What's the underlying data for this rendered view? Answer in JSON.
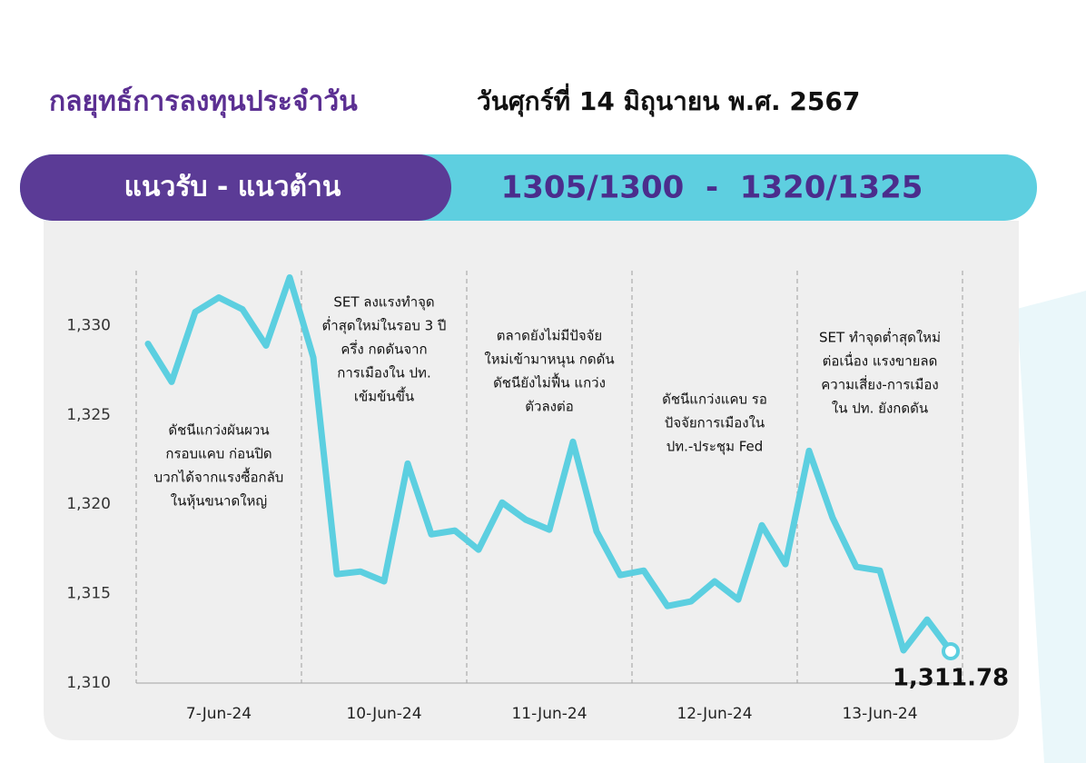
{
  "header": {
    "title": "กลยุทธ์การลงทุนประจำวัน",
    "date": "วันศุกร์ที่ 14 มิถุนายน พ.ศ. 2567"
  },
  "banner": {
    "label": "แนวรับ - แนวต้าน",
    "levels": "1305/1300  -  1320/1325"
  },
  "chart_data": {
    "type": "line",
    "categories": [
      null,
      null,
      null,
      "7-Jun-24",
      null,
      null,
      null,
      null,
      null,
      null,
      "10-Jun-24",
      null,
      null,
      null,
      null,
      null,
      null,
      "11-Jun-24",
      null,
      null,
      null,
      null,
      null,
      null,
      "12-Jun-24",
      null,
      null,
      null,
      null,
      null,
      null,
      "13-Jun-24",
      null,
      null,
      null
    ],
    "series": [
      {
        "color": "#5ccfe0",
        "values": [
          1328.98,
          1326.85,
          1330.76,
          1331.57,
          1330.91,
          1328.88,
          1332.69,
          1328.22,
          1316.09,
          1316.24,
          1315.69,
          1322.28,
          1318.32,
          1318.53,
          1317.46,
          1320.1,
          1319.14,
          1318.58,
          1323.5,
          1318.48,
          1316.04,
          1316.29,
          1314.31,
          1314.57,
          1315.69,
          1314.67,
          1318.83,
          1316.65,
          1322.99,
          1319.24,
          1316.5,
          1316.29,
          1311.83,
          1313.55,
          1311.78
        ],
        "value_labels": [
          null,
          null,
          null,
          null,
          null,
          null,
          null,
          null,
          null,
          null,
          null,
          null,
          null,
          null,
          null,
          null,
          null,
          null,
          null,
          null,
          null,
          null,
          null,
          null,
          null,
          null,
          null,
          null,
          null,
          null,
          null,
          null,
          null,
          null,
          "1,311.78"
        ]
      }
    ],
    "ylim": [
      1310,
      1335
    ],
    "yticks": [
      {
        "value": 1310,
        "label": "1,310"
      },
      {
        "value": 1315,
        "label": "1,315"
      },
      {
        "value": 1320,
        "label": "1,320"
      },
      {
        "value": 1325,
        "label": "1,325"
      },
      {
        "value": 1330,
        "label": "1,330"
      }
    ],
    "annotations": [
      [
        "ดัชนีแกว่งผันผวน",
        "กรอบแคบ ก่อนปิด",
        "บวกได้จากแรงซื้อกลับ",
        "ในหุ้นขนาดใหญ่"
      ],
      [
        "SET ลงแรงทำจุด",
        "ต่ำสุดใหม่ในรอบ 3 ปี",
        "ครึ่ง กดดันจาก",
        "การเมืองใน ปท.",
        "เข้มข้นขึ้น"
      ],
      [
        "ตลาดยังไม่มีปัจจัย",
        "ใหม่เข้ามาหนุน กดดัน",
        "ดัชนียังไม่ฟื้น แกว่ง",
        "ตัวลงต่อ"
      ],
      [
        "ดัชนีแกว่งแคบ รอ",
        "ปัจจัยการเมืองใน",
        "ปท.-ประชุม Fed"
      ],
      [
        "SET ทำจุดต่ำสุดใหม่",
        "ต่อเนื่อง แรงขายลด",
        "ความเสี่ยง-การเมือง",
        "ใน ปท. ยังกดดัน"
      ]
    ]
  }
}
